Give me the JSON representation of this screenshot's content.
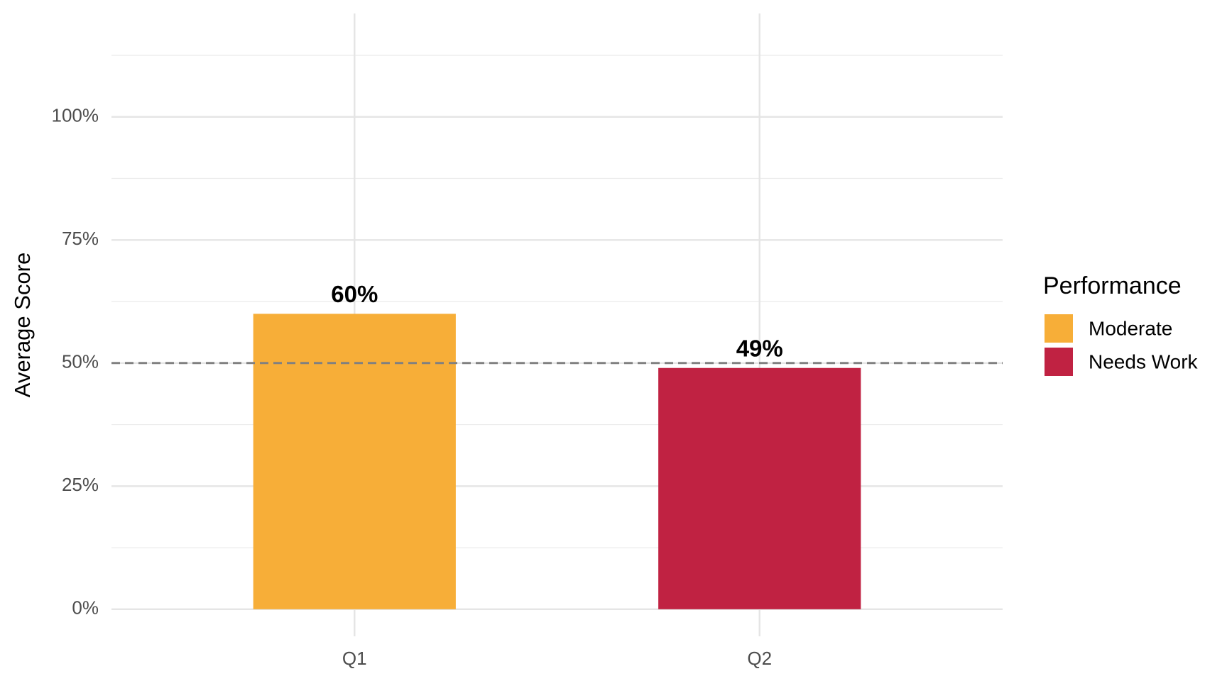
{
  "chart_data": {
    "type": "bar",
    "y_label": "Average Score",
    "categories": [
      "Q1",
      "Q2"
    ],
    "series": [
      {
        "name": "Moderate",
        "color": "#f7ae38",
        "values": [
          60,
          null
        ],
        "value_labels": [
          "60%",
          null
        ]
      },
      {
        "name": "Needs Work",
        "color": "#c02242",
        "values": [
          null,
          49
        ],
        "value_labels": [
          null,
          "49%"
        ]
      }
    ],
    "ylim": [
      -5.5,
      121
    ],
    "yticks": [
      {
        "value": 0,
        "label": "0%"
      },
      {
        "value": 25,
        "label": "25%"
      },
      {
        "value": 50,
        "label": "50%"
      },
      {
        "value": 75,
        "label": "75%"
      },
      {
        "value": 100,
        "label": "100%"
      }
    ],
    "minor_yticks": [
      12.5,
      37.5,
      62.5,
      87.5,
      112.5
    ],
    "reference_line": 50,
    "legend_title": "Performance",
    "legend_position": "right",
    "grid": true
  }
}
